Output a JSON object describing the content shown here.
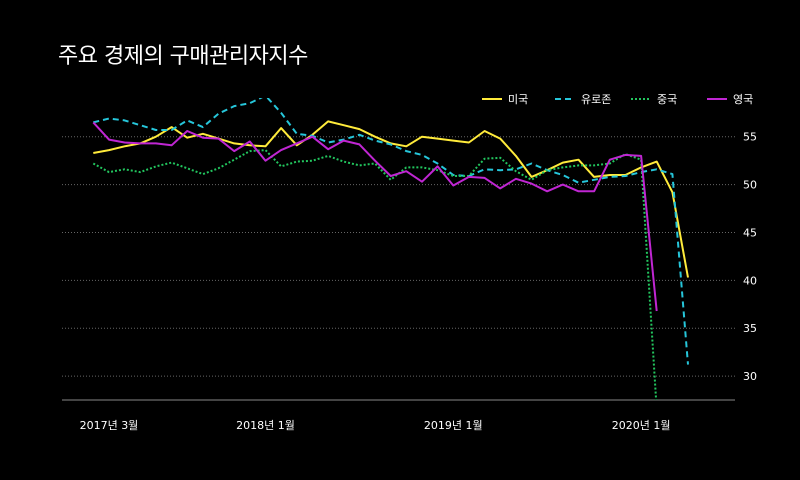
{
  "chart_data": {
    "type": "line",
    "title": "주요 경제의 구매관리자지수",
    "x_tick_labels": [
      "2017년 3월",
      "2018년 1월",
      "2019년 1월",
      "2020년 1월"
    ],
    "x_tick_months": [
      "2017-03",
      "2018-01",
      "2019-01",
      "2020-01"
    ],
    "y_ticks": [
      30,
      35,
      40,
      45,
      50,
      55
    ],
    "ylim": [
      27.5,
      58
    ],
    "xlim": [
      "2016-12",
      "2020-07"
    ],
    "grid": true,
    "legend_position": "top-right",
    "x": [
      "2017-01",
      "2017-02",
      "2017-03",
      "2017-04",
      "2017-05",
      "2017-06",
      "2017-07",
      "2017-08",
      "2017-09",
      "2017-10",
      "2017-11",
      "2017-12",
      "2018-01",
      "2018-02",
      "2018-03",
      "2018-04",
      "2018-05",
      "2018-06",
      "2018-07",
      "2018-08",
      "2018-09",
      "2018-10",
      "2018-11",
      "2018-12",
      "2019-01",
      "2019-02",
      "2019-03",
      "2019-04",
      "2019-05",
      "2019-06",
      "2019-07",
      "2019-08",
      "2019-09",
      "2019-10",
      "2019-11",
      "2019-12",
      "2020-01",
      "2020-02",
      "2020-03",
      "2020-04"
    ],
    "series": [
      {
        "name": "미국",
        "color": "#ffeb3b",
        "dash": "solid",
        "values": [
          null,
          53.3,
          53.6,
          54.0,
          54.3,
          55.0,
          56.0,
          54.9,
          55.3,
          54.8,
          54.3,
          54.1,
          54.0,
          55.9,
          54.1,
          55.2,
          56.6,
          56.2,
          55.8,
          55.0,
          54.3,
          54.0,
          55.0,
          54.8,
          54.6,
          54.4,
          55.6,
          54.8,
          53.0,
          50.8,
          51.5,
          52.3,
          52.6,
          50.8,
          51.0,
          51.0,
          51.8,
          52.4,
          49.2,
          40.3
        ]
      },
      {
        "name": "유로존",
        "color": "#26c6da",
        "dash": "dashed",
        "values": [
          null,
          56.5,
          56.9,
          56.7,
          56.2,
          55.7,
          55.7,
          56.7,
          56.0,
          57.4,
          58.2,
          58.5,
          59.3,
          57.5,
          55.3,
          55.1,
          54.4,
          54.7,
          55.2,
          54.6,
          54.2,
          53.5,
          53.1,
          52.2,
          51.0,
          50.9,
          51.6,
          51.5,
          51.6,
          52.2,
          51.5,
          51.0,
          50.2,
          50.5,
          50.8,
          50.9,
          51.3,
          51.6,
          51.1,
          31.2
        ]
      },
      {
        "name": "중국",
        "color": "#22c55e",
        "dash": "dotted",
        "values": [
          null,
          52.2,
          51.3,
          51.6,
          51.3,
          51.9,
          52.3,
          51.7,
          51.1,
          51.7,
          52.6,
          53.5,
          53.6,
          51.9,
          52.4,
          52.5,
          53.0,
          52.4,
          52.0,
          52.2,
          50.5,
          51.8,
          51.8,
          51.5,
          50.9,
          50.9,
          52.7,
          52.8,
          51.4,
          50.5,
          51.5,
          51.8,
          52.0,
          52.0,
          52.2,
          53.2,
          52.6,
          26.5,
          null,
          null
        ]
      },
      {
        "name": "영국",
        "color": "#c026d3",
        "dash": "solid",
        "values": [
          null,
          56.5,
          54.7,
          54.4,
          54.3,
          54.3,
          54.1,
          55.6,
          54.9,
          54.8,
          53.5,
          54.5,
          52.5,
          53.6,
          54.3,
          55.0,
          53.7,
          54.6,
          54.2,
          52.5,
          50.9,
          51.4,
          50.3,
          51.9,
          49.9,
          50.8,
          50.7,
          49.6,
          50.6,
          50.1,
          49.3,
          50.0,
          49.3,
          49.3,
          52.6,
          53.1,
          53.0,
          36.8,
          null,
          null
        ]
      }
    ]
  }
}
